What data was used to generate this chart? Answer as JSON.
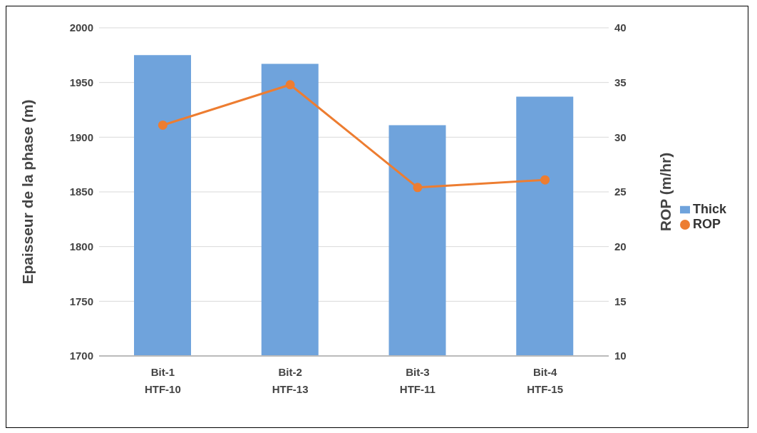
{
  "chart_data": {
    "type": "bar",
    "categories": [
      "Bit-1\nHTF-10",
      "Bit-2\nHTF-13",
      "Bit-3\nHTF-11",
      "Bit-4\nHTF-15"
    ],
    "series": [
      {
        "name": "Thick",
        "type": "bar",
        "color": "#6fa3dc",
        "values": [
          1975,
          1967,
          1911,
          1937
        ]
      },
      {
        "name": "ROP",
        "type": "line",
        "axis": "y2",
        "color": "#ed7d31",
        "values": [
          31.1,
          34.8,
          25.4,
          26.1
        ]
      }
    ],
    "ylabel": "Epaisseur de la phase (m)",
    "y2label": "ROP (m/hr)",
    "ylim": [
      1700,
      2000
    ],
    "yticks": [
      1700,
      1750,
      1800,
      1850,
      1900,
      1950,
      2000
    ],
    "y2lim": [
      10,
      40
    ],
    "y2ticks": [
      10,
      15,
      20,
      25,
      30,
      35,
      40
    ],
    "grid": "y",
    "legend": "right",
    "marker": "circle"
  }
}
